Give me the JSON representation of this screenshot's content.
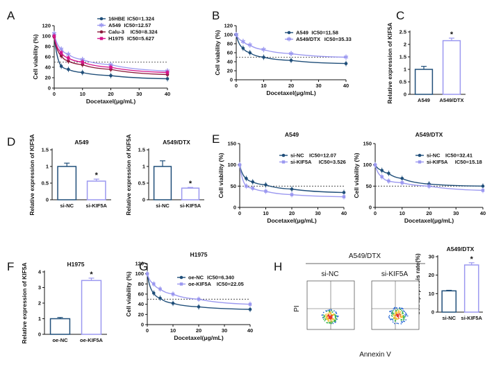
{
  "colors": {
    "dark": "#1f4e79",
    "light": "#9b98f0",
    "maroon": "#8b1a3a",
    "magenta": "#d4148a",
    "axis": "#111111"
  },
  "chart_data": [
    {
      "id": "A",
      "label": "A",
      "type": "line",
      "xlabel": "Docetaxel(μg/mL)",
      "ylabel": "Cell viability (%)",
      "xlim": [
        0,
        40
      ],
      "ylim": [
        0,
        120
      ],
      "xticks": [
        0,
        10,
        20,
        30,
        40
      ],
      "yticks": [
        0,
        20,
        40,
        60,
        80,
        100,
        120
      ],
      "threshold": 50,
      "x": [
        0,
        2.5,
        5,
        10,
        20,
        40
      ],
      "series": [
        {
          "name": "16HBE",
          "ic50": "IC50=1.324",
          "color": "dark",
          "marker": "circle",
          "values": [
            100,
            42,
            36,
            30,
            24,
            18
          ]
        },
        {
          "name": "A549",
          "ic50": "IC50=12.57",
          "color": "light",
          "marker": "star",
          "values": [
            105,
            75,
            65,
            55,
            45,
            33
          ]
        },
        {
          "name": "Calu-3",
          "ic50": "IC50=8.324",
          "color": "maroon",
          "marker": "circle",
          "values": [
            98,
            62,
            52,
            45,
            36,
            26
          ]
        },
        {
          "name": "H1975",
          "ic50": "IC50=5.627",
          "color": "magenta",
          "marker": "square",
          "values": [
            100,
            68,
            58,
            50,
            40,
            30
          ]
        }
      ]
    },
    {
      "id": "B",
      "label": "B",
      "type": "line",
      "xlabel": "Docetaxel(μg/mL)",
      "ylabel": "Cell viability (%)",
      "xlim": [
        0,
        40
      ],
      "ylim": [
        0,
        120
      ],
      "xticks": [
        0,
        10,
        20,
        30,
        40
      ],
      "yticks": [
        0,
        20,
        40,
        60,
        80,
        100,
        120
      ],
      "threshold": 50,
      "x": [
        0,
        2.5,
        5,
        10,
        20,
        40
      ],
      "series": [
        {
          "name": "A549",
          "ic50": "IC50=11.58",
          "color": "dark",
          "marker": "circle",
          "values": [
            100,
            70,
            60,
            50,
            43,
            36
          ]
        },
        {
          "name": "A549/DTX",
          "ic50": "IC50=35.33",
          "color": "light",
          "marker": "star",
          "values": [
            100,
            85,
            77,
            67,
            58,
            50
          ]
        }
      ]
    },
    {
      "id": "C",
      "label": "C",
      "type": "bar",
      "ylabel": "Relative expression of KIF5A",
      "ylim": [
        0,
        2.5
      ],
      "yticks": [
        0,
        0.5,
        1,
        1.5,
        2,
        2.5
      ],
      "categories": [
        "A549",
        "A549/DTX"
      ],
      "values": [
        1.0,
        2.15
      ],
      "errors": [
        0.12,
        0.1
      ],
      "colors": [
        "dark",
        "light"
      ],
      "significance": [
        "",
        "*"
      ]
    },
    {
      "id": "D1",
      "label": "D",
      "type": "bar",
      "title": "A549",
      "ylabel": "Relative expression of KIF5A",
      "ylim": [
        0,
        1.5
      ],
      "yticks": [
        0,
        0.5,
        1,
        1.5
      ],
      "categories": [
        "si-NC",
        "si-KIF5A"
      ],
      "values": [
        1.0,
        0.56
      ],
      "errors": [
        0.1,
        0.06
      ],
      "colors": [
        "dark",
        "light"
      ],
      "significance": [
        "",
        "*"
      ]
    },
    {
      "id": "D2",
      "label": "",
      "type": "bar",
      "title": "A549/DTX",
      "ylabel": "Relative expression of KIF5A",
      "ylim": [
        0,
        1.5
      ],
      "yticks": [
        0,
        0.5,
        1,
        1.5
      ],
      "categories": [
        "si-NC",
        "si-KIF5A"
      ],
      "values": [
        1.0,
        0.35
      ],
      "errors": [
        0.17,
        0.02
      ],
      "colors": [
        "dark",
        "light"
      ],
      "significance": [
        "",
        "*"
      ]
    },
    {
      "id": "E1",
      "label": "E",
      "type": "line",
      "title": "A549",
      "xlabel": "Docetaxel(μg/mL)",
      "ylabel": "Cell viability (%)",
      "xlim": [
        0,
        40
      ],
      "ylim": [
        0,
        150
      ],
      "xticks": [
        0,
        10,
        20,
        30,
        40
      ],
      "yticks": [
        0,
        50,
        100,
        150
      ],
      "threshold": 50,
      "x": [
        0,
        2.5,
        5,
        10,
        20,
        40
      ],
      "series": [
        {
          "name": "si-NC",
          "ic50": "IC50=12.07",
          "color": "dark",
          "marker": "circle",
          "values": [
            100,
            68,
            60,
            53,
            43,
            35
          ]
        },
        {
          "name": "si-KIF5A",
          "ic50": "IC50=3.526",
          "color": "light",
          "marker": "square",
          "values": [
            100,
            50,
            45,
            38,
            30,
            25
          ]
        }
      ]
    },
    {
      "id": "E2",
      "label": "",
      "type": "line",
      "title": "A549/DTX",
      "xlabel": "Docetaxel(μg/mL)",
      "ylabel": "Cell viability (%)",
      "xlim": [
        0,
        40
      ],
      "ylim": [
        0,
        150
      ],
      "xticks": [
        0,
        10,
        20,
        30,
        40
      ],
      "yticks": [
        0,
        50,
        100,
        150
      ],
      "threshold": 50,
      "x": [
        0,
        2.5,
        5,
        10,
        20,
        40
      ],
      "series": [
        {
          "name": "si-NC",
          "ic50": "IC50=32.41",
          "color": "dark",
          "marker": "circle",
          "values": [
            100,
            87,
            80,
            68,
            55,
            50
          ]
        },
        {
          "name": "si-KIF5A",
          "ic50": "IC50=15.18",
          "color": "light",
          "marker": "square",
          "values": [
            100,
            72,
            62,
            58,
            50,
            40
          ]
        }
      ]
    },
    {
      "id": "F",
      "label": "F",
      "type": "bar",
      "title": "H1975",
      "ylabel": "Relative expression of KIF5A",
      "ylim": [
        0,
        4
      ],
      "yticks": [
        0,
        1,
        2,
        3,
        4
      ],
      "categories": [
        "oe-NC",
        "oe-KIF5A"
      ],
      "values": [
        1.0,
        3.45
      ],
      "errors": [
        0.08,
        0.15
      ],
      "colors": [
        "dark",
        "light"
      ],
      "significance": [
        "",
        "*"
      ]
    },
    {
      "id": "G",
      "label": "G",
      "type": "line",
      "title": "H1975",
      "xlabel": "Docetaxel(μg/mL)",
      "ylabel": "Cell viability (%)",
      "xlim": [
        0,
        40
      ],
      "ylim": [
        0,
        120
      ],
      "xticks": [
        0,
        10,
        20,
        30,
        40
      ],
      "yticks": [
        0,
        20,
        40,
        60,
        80,
        100,
        120
      ],
      "threshold": 50,
      "x": [
        0,
        2.5,
        5,
        10,
        20,
        40
      ],
      "series": [
        {
          "name": "oe-NC",
          "ic50": "IC50=6.340",
          "color": "dark",
          "marker": "circle",
          "values": [
            100,
            62,
            52,
            42,
            35,
            30
          ]
        },
        {
          "name": "oe-KIF5A",
          "ic50": "IC50=22.05",
          "color": "light",
          "marker": "square",
          "values": [
            100,
            80,
            70,
            60,
            50,
            40
          ]
        }
      ]
    },
    {
      "id": "H2",
      "label": "",
      "type": "bar",
      "title": "A549/DTX",
      "ylabel": "Cell apoptosis rate(%)",
      "ylim": [
        0,
        30
      ],
      "yticks": [
        0,
        10,
        20,
        30
      ],
      "categories": [
        "si-NC",
        "si-KIF5A"
      ],
      "values": [
        11.5,
        25.5
      ],
      "errors": [
        0.3,
        1.2
      ],
      "colors": [
        "dark",
        "light"
      ],
      "significance": [
        "",
        "*"
      ]
    }
  ],
  "flow": {
    "label": "H",
    "header": "A549/DTX",
    "groups": [
      "si-NC",
      "si-KIF5A"
    ],
    "xaxis": "Annexin V",
    "yaxis": "PI"
  }
}
